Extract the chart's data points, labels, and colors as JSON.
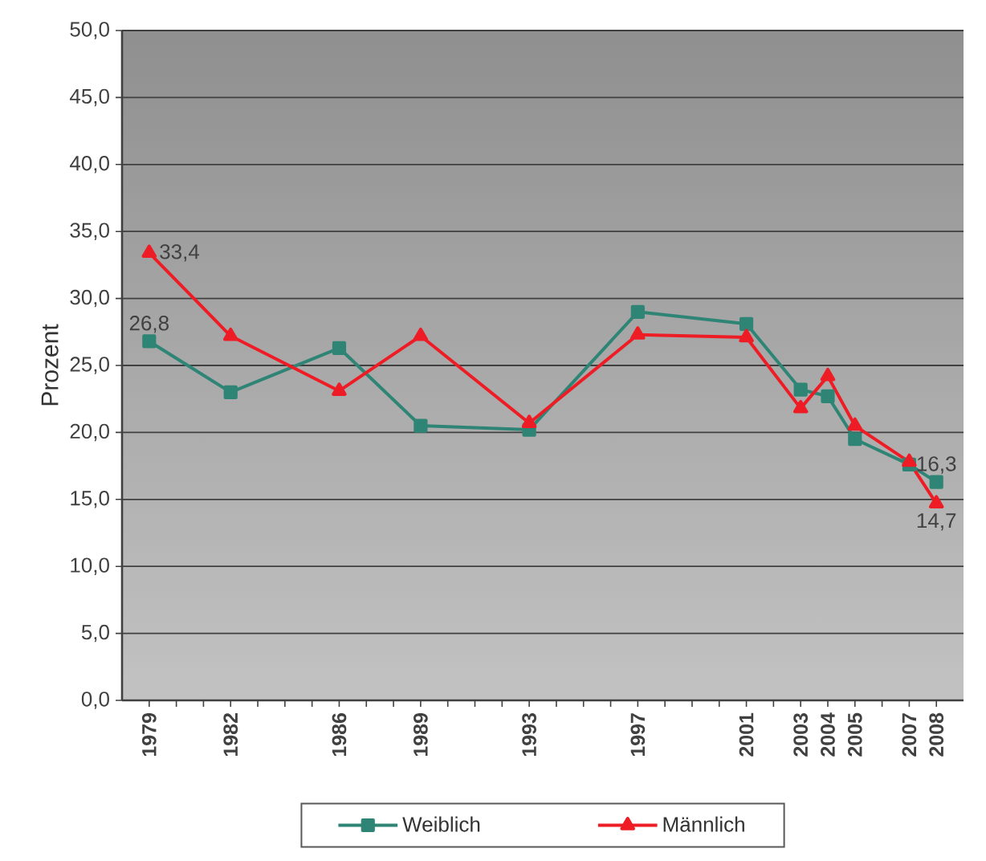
{
  "chart_data": {
    "type": "line",
    "ylabel": "Prozent",
    "x": [
      1979,
      1982,
      1986,
      1989,
      1993,
      1997,
      2001,
      2003,
      2004,
      2005,
      2007,
      2008
    ],
    "xlim": [
      1978,
      2009
    ],
    "xticks": [
      1979,
      {
        "value": 1980,
        "label": null
      },
      {
        "value": 1981,
        "label": null
      },
      1982,
      {
        "value": 1983,
        "label": null
      },
      {
        "value": 1984,
        "label": null
      },
      {
        "value": 1985,
        "label": null
      },
      1986,
      {
        "value": 1987,
        "label": null
      },
      {
        "value": 1988,
        "label": null
      },
      1989,
      {
        "value": 1990,
        "label": null
      },
      {
        "value": 1991,
        "label": null
      },
      {
        "value": 1992,
        "label": null
      },
      1993,
      {
        "value": 1994,
        "label": null
      },
      {
        "value": 1995,
        "label": null
      },
      {
        "value": 1996,
        "label": null
      },
      1997,
      {
        "value": 1998,
        "label": null
      },
      {
        "value": 1999,
        "label": null
      },
      {
        "value": 2000,
        "label": null
      },
      2001,
      {
        "value": 2002,
        "label": null
      },
      2003,
      2004,
      2005,
      {
        "value": 2006,
        "label": null
      },
      2007,
      2008
    ],
    "ylim": [
      0,
      50
    ],
    "yticks": [
      {
        "value": 0,
        "label": "0,0"
      },
      {
        "value": 5,
        "label": "5,0"
      },
      {
        "value": 10,
        "label": "10,0"
      },
      {
        "value": 15,
        "label": "15,0"
      },
      {
        "value": 20,
        "label": "20,0"
      },
      {
        "value": 25,
        "label": "25,0"
      },
      {
        "value": 30,
        "label": "30,0"
      },
      {
        "value": 35,
        "label": "35,0"
      },
      {
        "value": 40,
        "label": "40,0"
      },
      {
        "value": 45,
        "label": "45,0"
      },
      {
        "value": 50,
        "label": "50,0"
      }
    ],
    "grid": "y",
    "legend": "bottom",
    "series": [
      {
        "name": "Weiblich",
        "color": "#2f8575",
        "marker": "square",
        "line_style": "solid",
        "values": [
          26.8,
          23.0,
          26.3,
          20.5,
          20.2,
          29.0,
          28.1,
          23.2,
          22.7,
          19.5,
          17.6,
          16.3
        ],
        "value_labels": [
          "26,8",
          null,
          null,
          null,
          null,
          null,
          null,
          null,
          null,
          null,
          null,
          "16,3"
        ]
      },
      {
        "name": "Männlich",
        "color": "#ee1c25",
        "marker": "triangle",
        "line_style": "solid",
        "values": [
          33.4,
          27.2,
          23.1,
          27.2,
          20.7,
          27.3,
          27.1,
          21.8,
          24.2,
          20.5,
          17.8,
          14.7
        ],
        "value_labels": [
          "33,4",
          null,
          null,
          null,
          null,
          null,
          null,
          null,
          null,
          null,
          null,
          "14,7"
        ]
      }
    ]
  }
}
